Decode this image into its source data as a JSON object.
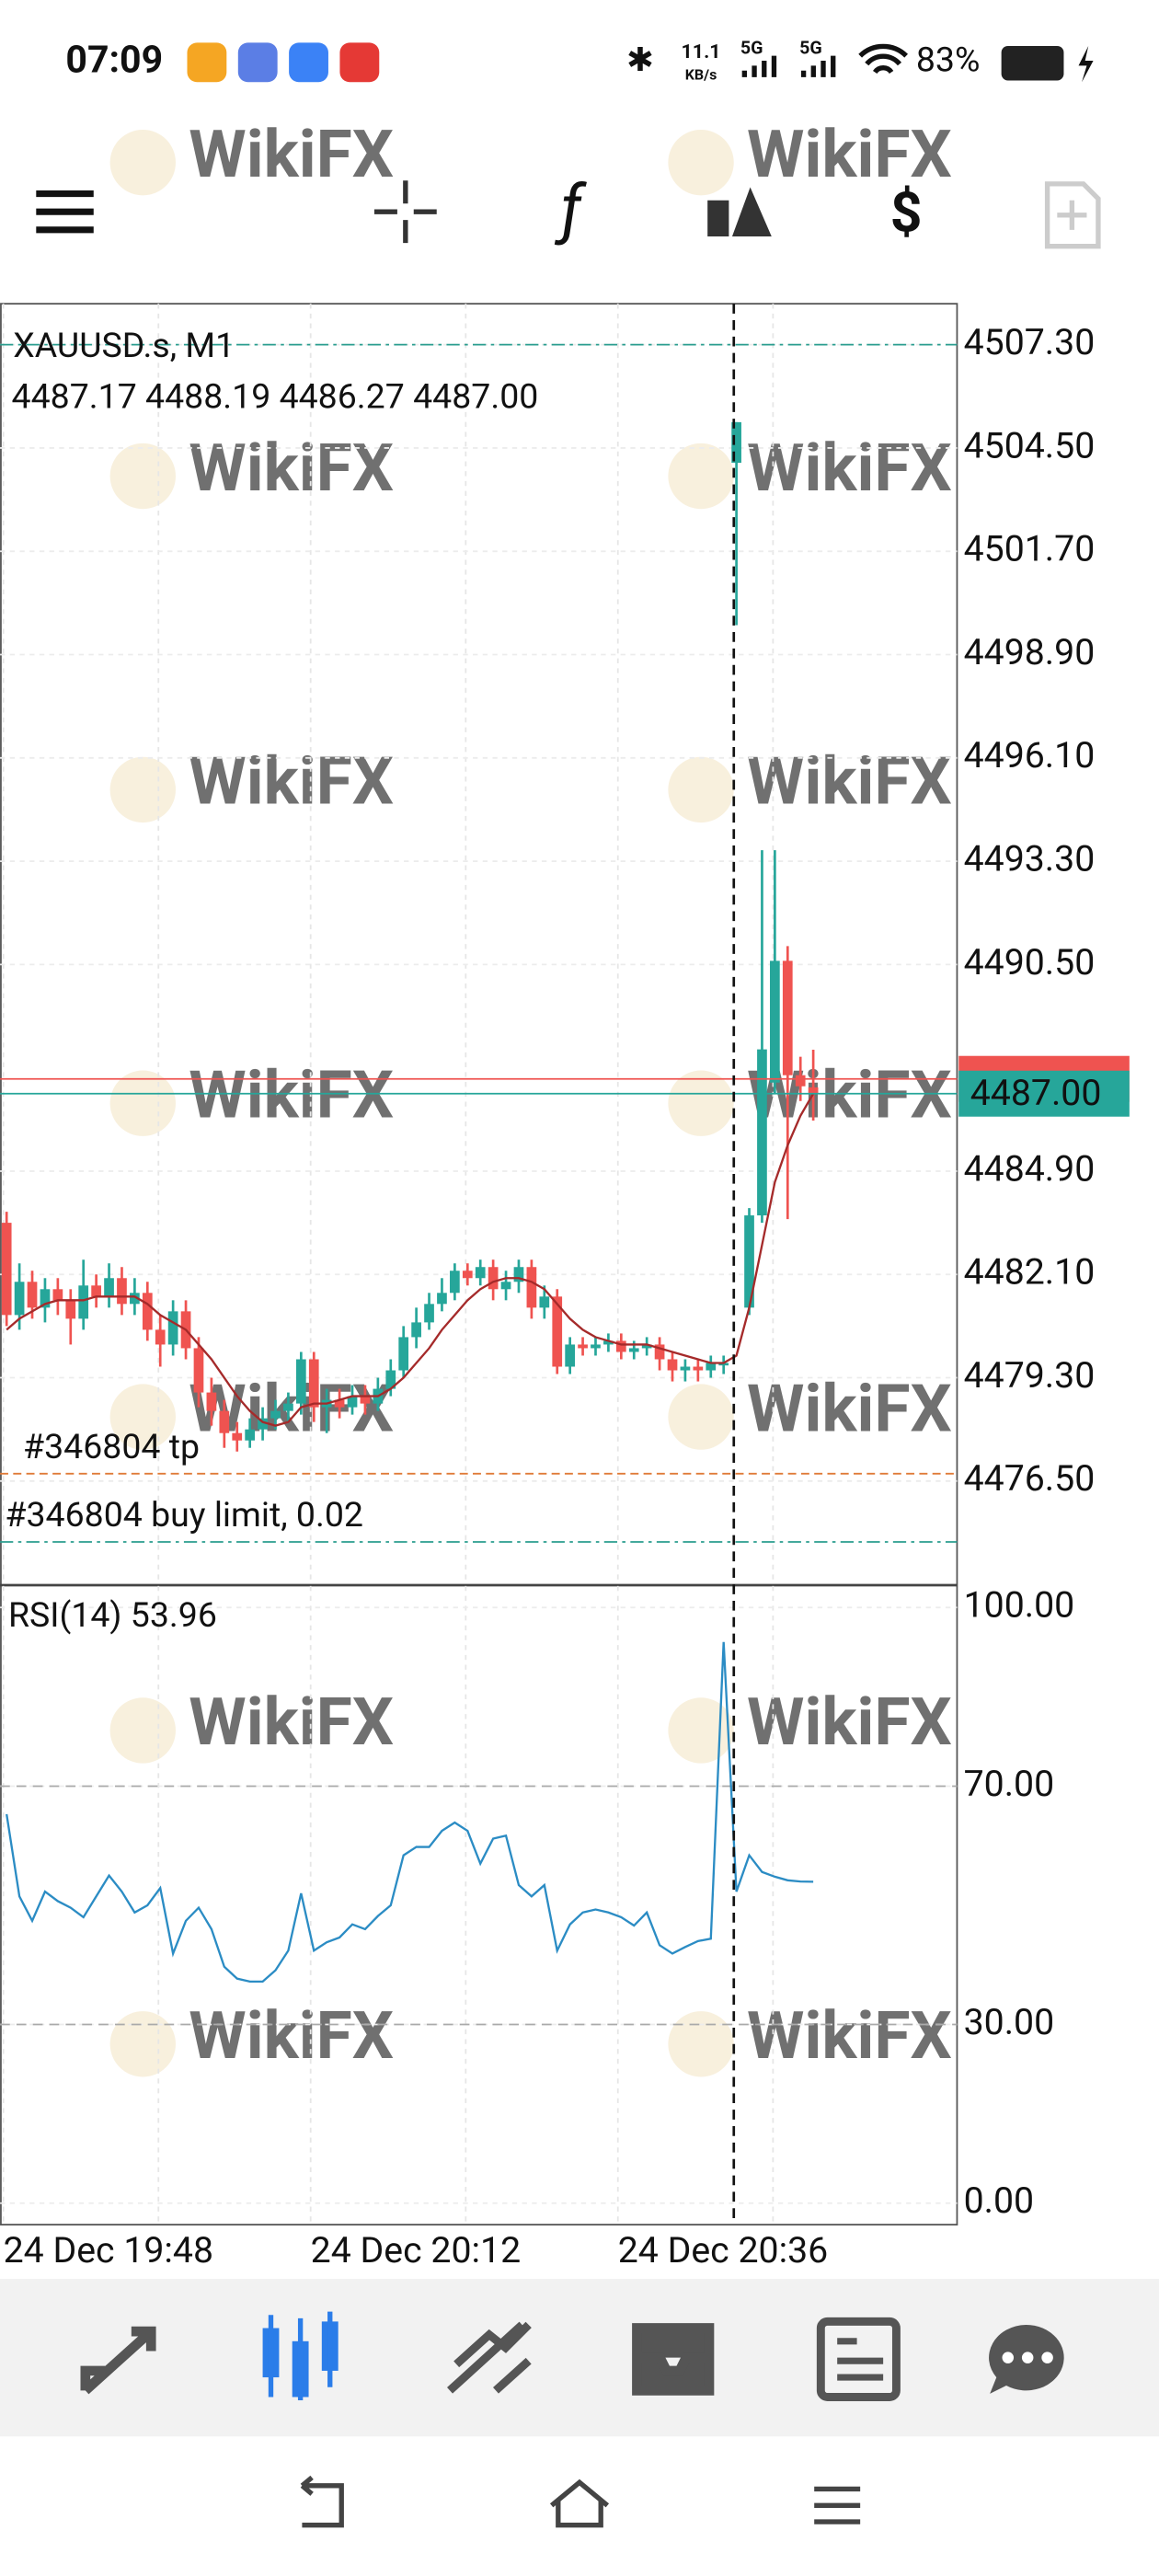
{
  "status_bar": {
    "time": "07:09",
    "net_speed": "11.1",
    "net_unit": "KB/s",
    "network_1": "5G",
    "network_2": "5G",
    "battery": "83%"
  },
  "watermark": "WikiFX",
  "chart_data": [
    {
      "type": "candlestick",
      "title": "XAUUSD.s, M1",
      "categories": [
        "24 Dec 19:48",
        null,
        null,
        null,
        null,
        null,
        null,
        null,
        null,
        null,
        null,
        null,
        null,
        null,
        null,
        null,
        null,
        null,
        null,
        null,
        null,
        null,
        null,
        null,
        "24 Dec 20:12",
        null,
        null,
        null,
        null,
        null,
        null,
        null,
        null,
        null,
        null,
        null,
        null,
        null,
        null,
        null,
        null,
        null,
        null,
        null,
        null,
        null,
        null,
        null,
        "24 Dec 20:36",
        null,
        null,
        null,
        null,
        null,
        null,
        null,
        null,
        null,
        null,
        null,
        null,
        null,
        null,
        null
      ],
      "open": [
        4483.5,
        4481.0,
        4481.9,
        4481.2,
        4481.7,
        4481.4,
        4480.9,
        4481.8,
        4481.5,
        4482.0,
        4481.3,
        4481.6,
        4480.6,
        4480.2,
        4481.1,
        4480.1,
        4478.9,
        4478.4,
        4477.8,
        4477.6,
        4477.9,
        4478.2,
        4478.4,
        4478.6,
        4479.8,
        4478.5,
        4478.7,
        4478.5,
        4478.8,
        4478.6,
        4479.0,
        4479.5,
        4480.4,
        4480.8,
        4481.3,
        4481.6,
        4482.2,
        4482.0,
        4482.3,
        4481.7,
        4481.9,
        4482.3,
        4481.2,
        4481.5,
        4479.6,
        4480.2,
        4480.1,
        4480.2,
        4480.3,
        4480.0,
        4480.1,
        4480.2,
        4479.8,
        4479.5,
        4479.6,
        4479.5,
        4479.7,
        4504.1,
        4481.2,
        4483.7,
        4487.3,
        4490.6,
        4487.5,
        4487.17
      ],
      "high": [
        4483.8,
        4482.4,
        4482.2,
        4482.0,
        4482.0,
        4481.7,
        4482.5,
        4482.1,
        4482.4,
        4482.3,
        4482.0,
        4481.9,
        4481.0,
        4481.4,
        4481.4,
        4480.4,
        4479.3,
        4478.7,
        4478.1,
        4478.2,
        4478.5,
        4478.7,
        4478.9,
        4480.0,
        4480.0,
        4479.0,
        4479.0,
        4479.1,
        4479.1,
        4479.3,
        4479.8,
        4480.7,
        4481.2,
        4481.6,
        4482.0,
        4482.4,
        4482.4,
        4482.5,
        4482.5,
        4482.2,
        4482.5,
        4482.5,
        4481.8,
        4481.7,
        4480.4,
        4480.4,
        4480.4,
        4480.5,
        4480.5,
        4480.3,
        4480.4,
        4480.4,
        4480.0,
        4479.8,
        4479.8,
        4479.9,
        4479.9,
        4505.2,
        4483.9,
        4493.6,
        4493.6,
        4491.0,
        4488.0,
        4488.19
      ],
      "low": [
        4480.7,
        4480.6,
        4480.9,
        4480.8,
        4481.0,
        4480.2,
        4480.6,
        4481.2,
        4481.2,
        4481.0,
        4481.0,
        4480.3,
        4479.6,
        4479.9,
        4479.8,
        4478.5,
        4478.0,
        4477.4,
        4477.3,
        4477.4,
        4477.6,
        4477.9,
        4478.1,
        4478.3,
        4478.1,
        4477.8,
        4478.2,
        4478.3,
        4478.3,
        4478.4,
        4478.8,
        4479.3,
        4480.1,
        4480.6,
        4481.1,
        4481.4,
        4481.8,
        4481.8,
        4481.4,
        4481.4,
        4481.6,
        4480.9,
        4480.9,
        4479.4,
        4479.4,
        4479.9,
        4479.9,
        4480.0,
        4479.8,
        4479.8,
        4479.9,
        4479.5,
        4479.2,
        4479.2,
        4479.2,
        4479.3,
        4479.4,
        4499.7,
        4481.0,
        4483.5,
        4487.0,
        4483.6,
        4486.8,
        4486.27
      ],
      "close": [
        4481.0,
        4481.9,
        4481.2,
        4481.7,
        4481.4,
        4480.9,
        4481.8,
        4481.5,
        4482.0,
        4481.3,
        4481.6,
        4480.6,
        4480.2,
        4481.1,
        4480.1,
        4478.9,
        4478.4,
        4477.8,
        4477.6,
        4477.9,
        4478.2,
        4478.4,
        4478.6,
        4479.8,
        4478.5,
        4478.7,
        4478.5,
        4478.8,
        4478.6,
        4479.0,
        4479.5,
        4480.4,
        4480.8,
        4481.3,
        4481.6,
        4482.2,
        4482.0,
        4482.3,
        4481.7,
        4481.9,
        4482.3,
        4481.2,
        4481.5,
        4479.6,
        4480.2,
        4480.1,
        4480.2,
        4480.3,
        4480.0,
        4480.1,
        4480.2,
        4479.8,
        4479.5,
        4479.6,
        4479.5,
        4479.7,
        4479.7,
        4505.2,
        4483.7,
        4488.2,
        4490.6,
        4487.5,
        4487.2,
        4487.0
      ],
      "ohlc_label": "4487.17 4488.19 4486.27 4487.00",
      "up_color": "#26a69a",
      "down_color": "#ef5350",
      "series": [
        {
          "color": "#a52a2a",
          "values": [
            4480.6,
            4480.9,
            4481.1,
            4481.3,
            4481.4,
            4481.4,
            4481.4,
            4481.5,
            4481.5,
            4481.5,
            4481.5,
            4481.3,
            4481.0,
            4480.8,
            4480.6,
            4480.2,
            4479.8,
            4479.3,
            4478.8,
            4478.4,
            4478.1,
            4478.0,
            4478.1,
            4478.5,
            4478.6,
            4478.6,
            4478.7,
            4478.8,
            4478.8,
            4478.8,
            4479.0,
            4479.3,
            4479.7,
            4480.1,
            4480.6,
            4481.0,
            4481.4,
            4481.7,
            4481.9,
            4482.0,
            4482.0,
            4481.9,
            4481.7,
            4481.3,
            4480.9,
            4480.6,
            4480.4,
            4480.3,
            4480.2,
            4480.2,
            4480.2,
            4480.1,
            4480.0,
            4479.9,
            4479.8,
            4479.7,
            4479.7,
            4479.9,
            4481.2,
            4482.9,
            4484.6,
            4485.6,
            4486.4,
            4487.0
          ]
        }
      ],
      "last_price": {
        "value": 4487,
        "label": "4487.00",
        "color": "#26a69a"
      },
      "ask_price": {
        "value": 4487.4,
        "color": "#ef5350"
      },
      "levels": [
        {
          "value": 4507.3,
          "color": "#2a9d8f"
        },
        {
          "label": "#346804 tp",
          "value": 4476.7,
          "color": "#e07b39"
        },
        {
          "label": "#346804 buy limit, 0.02",
          "value": 4474.85,
          "color": "#2a9d8f"
        }
      ],
      "ylim": [
        4473.7,
        4508.41
      ],
      "yticks": [
        {
          "value": 4507.3,
          "label": "4507.30"
        },
        {
          "value": 4504.5,
          "label": "4504.50"
        },
        {
          "value": 4501.7,
          "label": "4501.70"
        },
        {
          "value": 4498.9,
          "label": "4498.90"
        },
        {
          "value": 4496.1,
          "label": "4496.10"
        },
        {
          "value": 4493.3,
          "label": "4493.30"
        },
        {
          "value": 4490.5,
          "label": "4490.50"
        },
        {
          "value": 4484.9,
          "label": "4484.90"
        },
        {
          "value": 4482.1,
          "label": "4482.10"
        },
        {
          "value": 4479.3,
          "label": "4479.30"
        },
        {
          "value": 4476.5,
          "label": "4476.50"
        }
      ],
      "grid": true
    },
    {
      "type": "line",
      "series": [
        {
          "name": "RSI(14)",
          "color": "#2b8cc4",
          "values": [
            65.3,
            51.5,
            47.4,
            52.3,
            50.7,
            49.6,
            48,
            51.5,
            55,
            52.3,
            48.8,
            50,
            52.9,
            41.9,
            47.4,
            49.6,
            46,
            39.7,
            37.7,
            37.2,
            37.2,
            39.1,
            42.4,
            52,
            42.4,
            43.8,
            44.6,
            46.8,
            46,
            48.2,
            50,
            58.4,
            59.8,
            59.8,
            62.5,
            63.9,
            62.5,
            57,
            61.2,
            61.7,
            53.4,
            51.5,
            53.4,
            42.4,
            46.8,
            48.8,
            49.3,
            48.8,
            48,
            46.6,
            48.8,
            43.3,
            41.9,
            43,
            44,
            44.4,
            94.2,
            52.3,
            58.4,
            55.6,
            54.8,
            54.2,
            54,
            53.96
          ]
        }
      ],
      "ylim": [
        -3.6,
        103.6
      ],
      "yticks": [
        {
          "value": 100,
          "label": "100.00"
        },
        {
          "value": 70,
          "label": "70.00"
        },
        {
          "value": 30,
          "label": "30.00"
        },
        {
          "value": 0,
          "label": "0.00"
        }
      ],
      "levels": [
        70,
        30
      ],
      "grid": true
    }
  ]
}
